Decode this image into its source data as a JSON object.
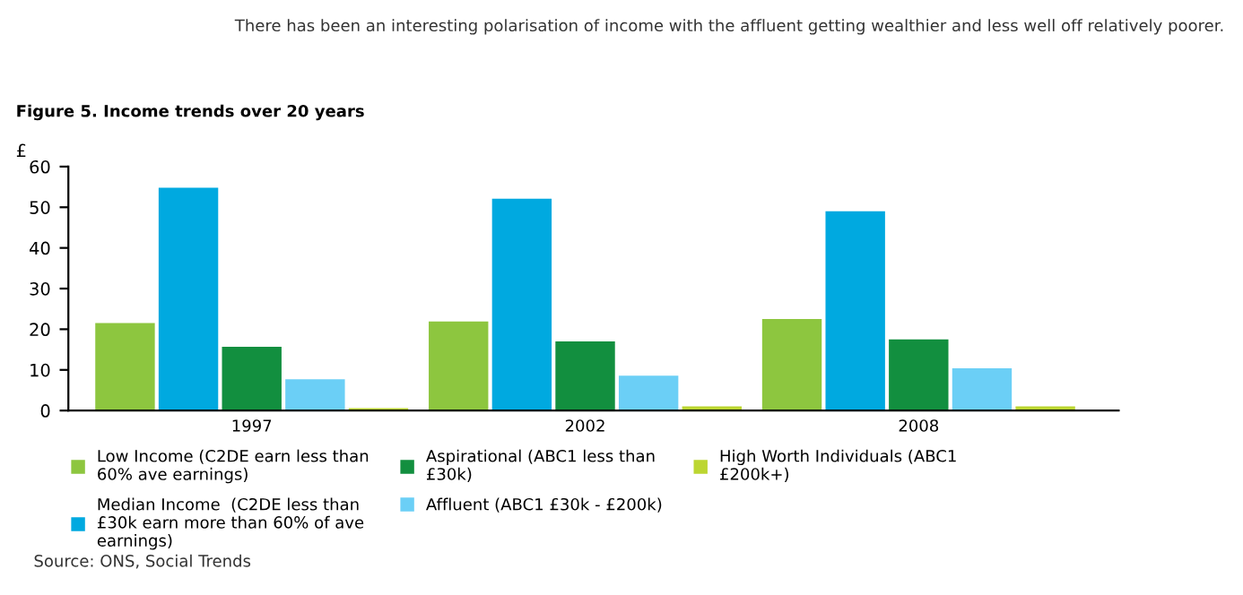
{
  "chart_data": {
    "type": "bar",
    "title": "Figure 5. Income trends over 20 years",
    "ylabel": "£",
    "annotations": [
      "There has been an interesting polarisation of income with the affluent getting wealthier and less well off relatively poorer.",
      "Source: ONS, Social Trends"
    ],
    "categories": [
      "1997",
      "2002",
      "2008"
    ],
    "series": [
      {
        "name": "Low Income (C2DE earn less than 60% ave earnings)",
        "color": "#8dc63f",
        "values": [
          21.5,
          21.9,
          22.5
        ]
      },
      {
        "name": "Median Income  (C2DE less than £30k earn more than 60% of ave earnings)",
        "color": "#00a9e0",
        "values": [
          54.8,
          52.1,
          49.0
        ]
      },
      {
        "name": "Aspirational (ABC1 less than £30k)",
        "color": "#128f3f",
        "values": [
          15.7,
          17.0,
          17.5
        ]
      },
      {
        "name": "Affluent (ABC1 £30k - £200k)",
        "color": "#6bcff6",
        "values": [
          7.7,
          8.6,
          10.4
        ]
      },
      {
        "name": "High Worth Individuals (ABC1 £200k+)",
        "color": "#bcd631",
        "values": [
          0.6,
          1.0,
          1.0
        ]
      }
    ],
    "ylim": [
      0,
      60
    ],
    "yticks": [
      0,
      10,
      20,
      30,
      40,
      50,
      60
    ],
    "grid": false,
    "legend": "bottom"
  }
}
